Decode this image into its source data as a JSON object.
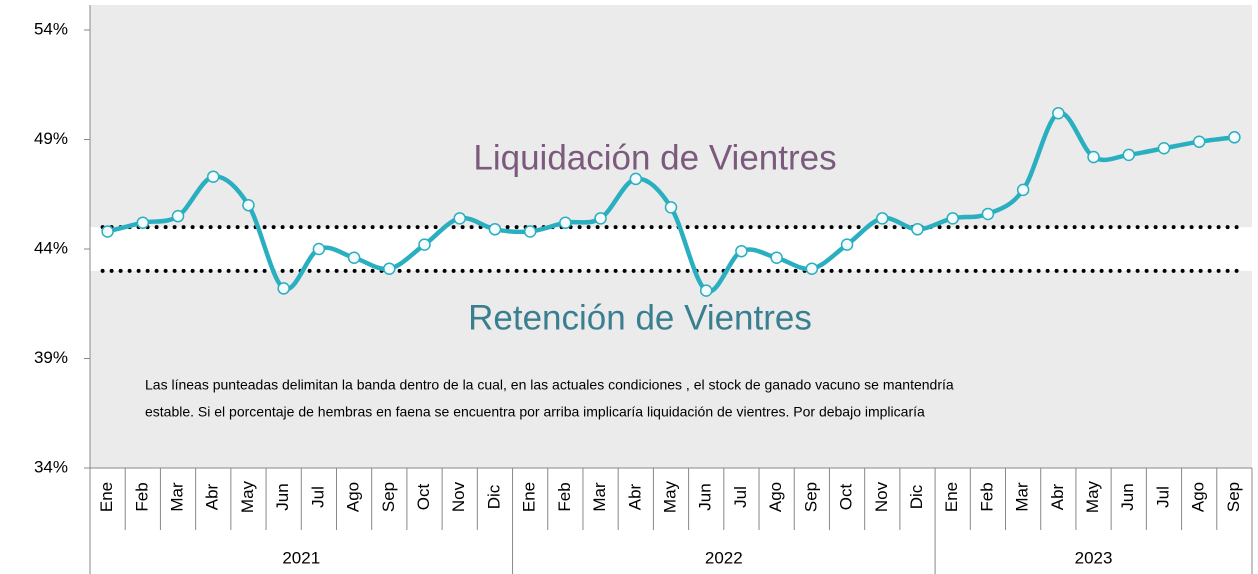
{
  "chart_data": {
    "type": "line",
    "categories": [
      "Ene",
      "Feb",
      "Mar",
      "Abr",
      "May",
      "Jun",
      "Jul",
      "Ago",
      "Sep",
      "Oct",
      "Nov",
      "Dic",
      "Ene",
      "Feb",
      "Mar",
      "Abr",
      "May",
      "Jun",
      "Jul",
      "Ago",
      "Sep",
      "Oct",
      "Nov",
      "Dic",
      "Ene",
      "Feb",
      "Mar",
      "Abr",
      "May",
      "Jun",
      "Jul",
      "Ago",
      "Sep"
    ],
    "groups": [
      {
        "label": "2021",
        "span": 12
      },
      {
        "label": "2022",
        "span": 12
      },
      {
        "label": "2023",
        "span": 9
      }
    ],
    "series": [
      {
        "color": "#2aafc0",
        "values": [
          44.8,
          45.2,
          45.5,
          47.3,
          46.0,
          42.2,
          44.0,
          43.6,
          43.1,
          44.2,
          45.4,
          44.9,
          44.8,
          45.2,
          45.4,
          47.2,
          45.9,
          42.1,
          43.9,
          43.6,
          43.1,
          44.2,
          45.4,
          44.9,
          45.4,
          45.6,
          46.7,
          50.2,
          48.2,
          48.3,
          48.6,
          48.9,
          49.1
        ]
      }
    ],
    "band_upper": 45.0,
    "band_lower": 43.0,
    "ylim": [
      34,
      54
    ],
    "yticks": [
      {
        "value": 34,
        "label": "34%"
      },
      {
        "value": 39,
        "label": "39%"
      },
      {
        "value": 44,
        "label": "44%"
      },
      {
        "value": 49,
        "label": "49%"
      },
      {
        "value": 54,
        "label": "54%"
      }
    ],
    "annotations": [
      {
        "text": "Liquidación de Vientres",
        "color": "#7b5a7d"
      },
      {
        "text": "Retención de Vientres",
        "color": "#3a7f8f"
      }
    ],
    "note": [
      "Las líneas punteadas delimitan la banda dentro de la cual, en las actuales condiciones , el stock de ganado vacuno se mantendría",
      "estable. Si el porcentaje de hembras en faena se encuentra por arriba implicaría liquidación de vientres. Por debajo implicaría"
    ]
  }
}
